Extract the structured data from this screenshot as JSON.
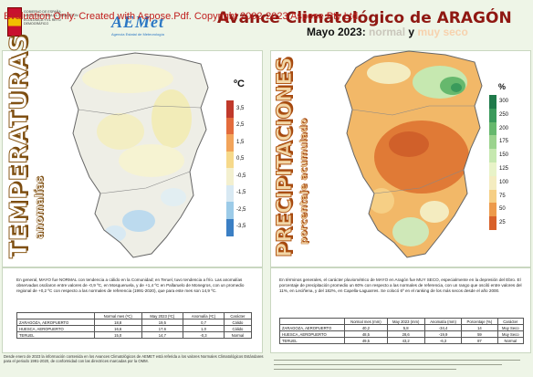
{
  "watermark": "Evaluation Only. Created with Aspose.Pdf. Copyright 2002-2023 Aspose Pty Ltd.",
  "header": {
    "gov_text": "GOBIERNO DE ESPAÑA · MINISTERIO PARA LA TRANSICIÓN ECOLÓGICA Y EL RETO DEMOGRÁFICO",
    "aemet_logo": "AEMet",
    "aemet_sub": "Agencia Estatal de Meteorología",
    "title_line1": "Avance Climatológico de ARAGÓN",
    "title_month": "Mayo 2023:",
    "title_normal": "normal",
    "title_y": "y",
    "title_seco": "muy seco"
  },
  "temperature": {
    "vertical_title": "TEMPERATURAS",
    "vertical_subtitle": "anomalías",
    "unit": "ºC",
    "legend": [
      {
        "label": "3,5",
        "color": "#c0392b"
      },
      {
        "label": "2,5",
        "color": "#e36b3c"
      },
      {
        "label": "1,5",
        "color": "#f2a45a"
      },
      {
        "label": "0,5",
        "color": "#f6d98a"
      },
      {
        "label": "-0,5",
        "color": "#f3f0cf"
      },
      {
        "label": "-1,5",
        "color": "#d8e9f3"
      },
      {
        "label": "-2,5",
        "color": "#9ccbe8"
      },
      {
        "label": "-3,5",
        "color": "#3b7fc4"
      }
    ],
    "text": "En general, MAYO fue NORMAL con tendencia a cálido en la Comunidad; en Teruel, tuvo tendencia a frío. Las anomalías observadas oscilaron entre valores de -0,9 ºC, en Mosqueruela, y de +1,4 ºC en Pallaruelo de Monegros, con un promedio regional de +0,2 ºC con respecto a las normales de referencia (1991-2020), que para este mes son 14,9 ºC.",
    "table": {
      "headers": [
        "",
        "Normal mes (ºC)",
        "May 2023 (ºC)",
        "Anomalía (ºC)",
        "Carácter"
      ],
      "rows": [
        [
          "ZARAGOZA, AEROPUERTO",
          "18,8",
          "19,5",
          "0,7",
          "Cálido"
        ],
        [
          "HUESCA, AEROPUERTO",
          "16,6",
          "17,6",
          "1,0",
          "Cálido"
        ],
        [
          "TERUEL",
          "15,0",
          "14,7",
          "-0,3",
          "Normal"
        ]
      ]
    }
  },
  "precipitation": {
    "vertical_title": "PRECIPITACIONES",
    "vertical_subtitle": "porcentaje acumulado",
    "unit": "%",
    "legend": [
      {
        "label": "300",
        "color": "#1f7a4a"
      },
      {
        "label": "250",
        "color": "#3a9a5b"
      },
      {
        "label": "200",
        "color": "#66b86d"
      },
      {
        "label": "175",
        "color": "#9bd38d"
      },
      {
        "label": "150",
        "color": "#c6e8b0"
      },
      {
        "label": "125",
        "color": "#e8f3c8"
      },
      {
        "label": "100",
        "color": "#f4ecc0"
      },
      {
        "label": "75",
        "color": "#f6cf85"
      },
      {
        "label": "50",
        "color": "#ed9a4b"
      },
      {
        "label": "25",
        "color": "#d8612a"
      }
    ],
    "text": "En términos generales, el carácter pluviométrico de MAYO en Aragón fue MUY SECO, especialmente en la depresión del Ebro. El porcentaje de precipitación promedio un 60% con respecto a las normales de referencia, con un rango que osciló entre valores del 11%, en Leciñena, y del 182%, en Capella-Laguarres. Se colocó 6º en el ranking de los más secos desde el año 2000.",
    "table": {
      "headers": [
        "",
        "Normal mes (mm)",
        "May 2023 (mm)",
        "Anomalía (mm)",
        "Porcentaje (%)",
        "Carácter"
      ],
      "rows": [
        [
          "ZARAGOZA, AEROPUERTO",
          "40,2",
          "5,8",
          "-34,4",
          "14",
          "Muy Seco"
        ],
        [
          "HUESCA, AEROPUERTO",
          "48,5",
          "28,6",
          "-19,9",
          "59",
          "Muy Seco"
        ],
        [
          "TERUEL",
          "49,5",
          "43,2",
          "-6,3",
          "87",
          "Normal"
        ]
      ]
    }
  },
  "footer": {
    "text": "Desde enero de 2023 la información contenida en los Avances Climatológicos de AEMET está referida a los valores Normales Climatológicos Estándares para el periodo 1991-2020, de conformidad con las directrices marcadas por la OMM."
  }
}
